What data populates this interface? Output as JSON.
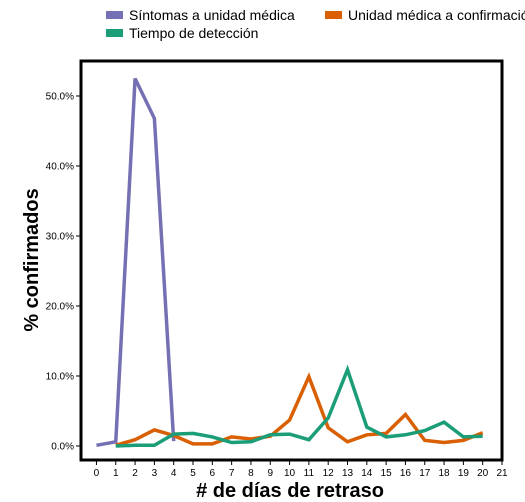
{
  "chart_data": {
    "type": "line",
    "xlabel": "# de días de retraso",
    "ylabel": "% confirmados",
    "xlim": [
      -0.8,
      21
    ],
    "ylim": [
      -2,
      55
    ],
    "x_ticks": [
      0,
      1,
      2,
      3,
      4,
      5,
      6,
      7,
      8,
      9,
      10,
      11,
      12,
      13,
      14,
      15,
      16,
      17,
      18,
      19,
      20,
      21
    ],
    "y_ticks": [
      {
        "value": 0,
        "label": "0.0%"
      },
      {
        "value": 10,
        "label": "10.0%"
      },
      {
        "value": 20,
        "label": "20.0%"
      },
      {
        "value": 30,
        "label": "30.0%"
      },
      {
        "value": 40,
        "label": "40.0%"
      },
      {
        "value": 50,
        "label": "50.0%"
      }
    ],
    "legend_position": "top",
    "series": [
      {
        "name": "Síntomas a unidad médica",
        "color": "#7570b3",
        "x": [
          0,
          1,
          2,
          3,
          4
        ],
        "y": [
          0.1,
          0.6,
          52.5,
          46.8,
          0.7
        ]
      },
      {
        "name": "Unidad médica a confirmación",
        "color": "#d95f02",
        "x": [
          1,
          2,
          3,
          4,
          5,
          6,
          7,
          8,
          9,
          10,
          11,
          12,
          13,
          14,
          15,
          16,
          17,
          18,
          19,
          20
        ],
        "y": [
          0.1,
          0.9,
          2.3,
          1.5,
          0.3,
          0.3,
          1.3,
          1.0,
          1.4,
          3.7,
          9.9,
          2.6,
          0.6,
          1.6,
          1.8,
          4.5,
          0.8,
          0.5,
          0.8,
          1.9
        ]
      },
      {
        "name": "Tiempo de detección",
        "color": "#1b9e77",
        "x": [
          1,
          2,
          3,
          4,
          5,
          6,
          7,
          8,
          9,
          10,
          11,
          12,
          13,
          14,
          15,
          16,
          17,
          18,
          19,
          20
        ],
        "y": [
          0.0,
          0.1,
          0.1,
          1.7,
          1.8,
          1.3,
          0.5,
          0.6,
          1.6,
          1.7,
          0.9,
          4.0,
          10.9,
          2.7,
          1.3,
          1.6,
          2.2,
          3.4,
          1.3,
          1.4
        ]
      }
    ]
  }
}
